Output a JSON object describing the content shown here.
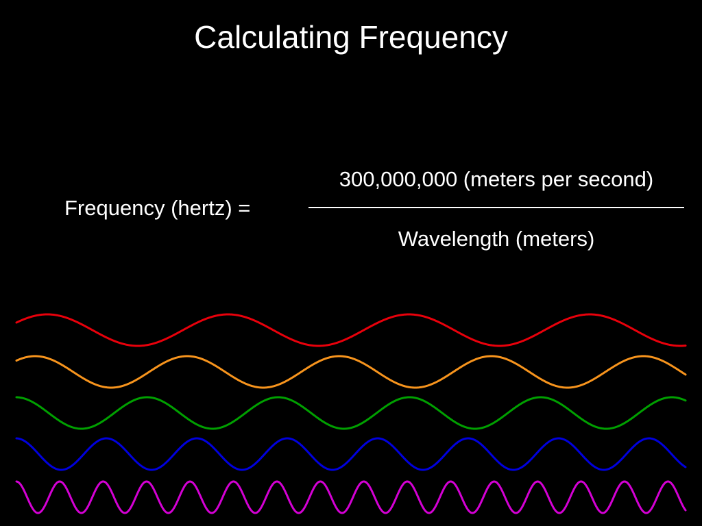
{
  "slide": {
    "title": "Calculating Frequency"
  },
  "formula": {
    "lhs": "Frequency (hertz) =",
    "numerator": "300,000,000 (meters per second)",
    "denominator": "Wavelength (meters)"
  },
  "waves": [
    {
      "name": "red-wave",
      "color": "#e8000b",
      "cycles": 3.7,
      "phase": 0.5
    },
    {
      "name": "orange-wave",
      "color": "#f7941d",
      "cycles": 4.4,
      "phase": 0.8
    },
    {
      "name": "green-wave",
      "color": "#00a000",
      "cycles": 5.1,
      "phase": 1.6
    },
    {
      "name": "blue-wave",
      "color": "#0000dd",
      "cycles": 7.4,
      "phase": 1.6
    },
    {
      "name": "magenta-wave",
      "color": "#d400d4",
      "cycles": 15.4,
      "phase": 1.6
    }
  ]
}
